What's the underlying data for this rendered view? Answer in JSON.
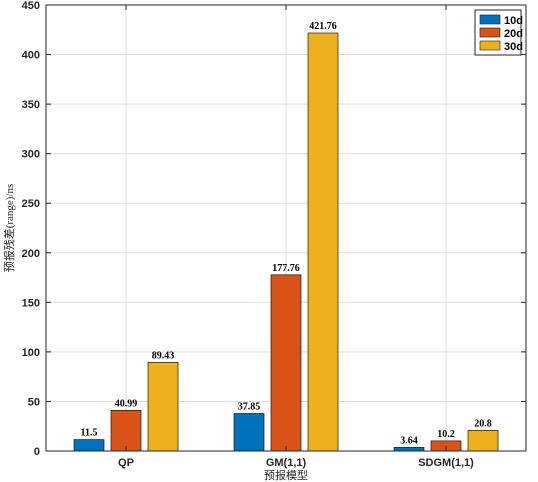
{
  "chart_data": {
    "type": "bar",
    "categories": [
      "QP",
      "GM(1,1)",
      "SDGM(1,1)"
    ],
    "series": [
      {
        "name": "10d",
        "color": "#0072BD",
        "values": [
          11.5,
          37.85,
          3.64
        ],
        "labels": [
          "11.5",
          "37.85",
          "3.64"
        ]
      },
      {
        "name": "20d",
        "color": "#D95319",
        "values": [
          40.99,
          177.76,
          10.2
        ],
        "labels": [
          "40.99",
          "177.76",
          "10.2"
        ]
      },
      {
        "name": "30d",
        "color": "#EDB120",
        "values": [
          89.43,
          421.76,
          20.8
        ],
        "labels": [
          "89.43",
          "421.76",
          "20.8"
        ]
      }
    ],
    "xlabel": "预报模型",
    "ylabel": "预报残差(range)/ns",
    "ylim": [
      0,
      450
    ],
    "yticks": [
      "0",
      "50",
      "100",
      "150",
      "200",
      "250",
      "300",
      "350",
      "400",
      "450"
    ],
    "grid": true,
    "legend_position": "top-right"
  }
}
